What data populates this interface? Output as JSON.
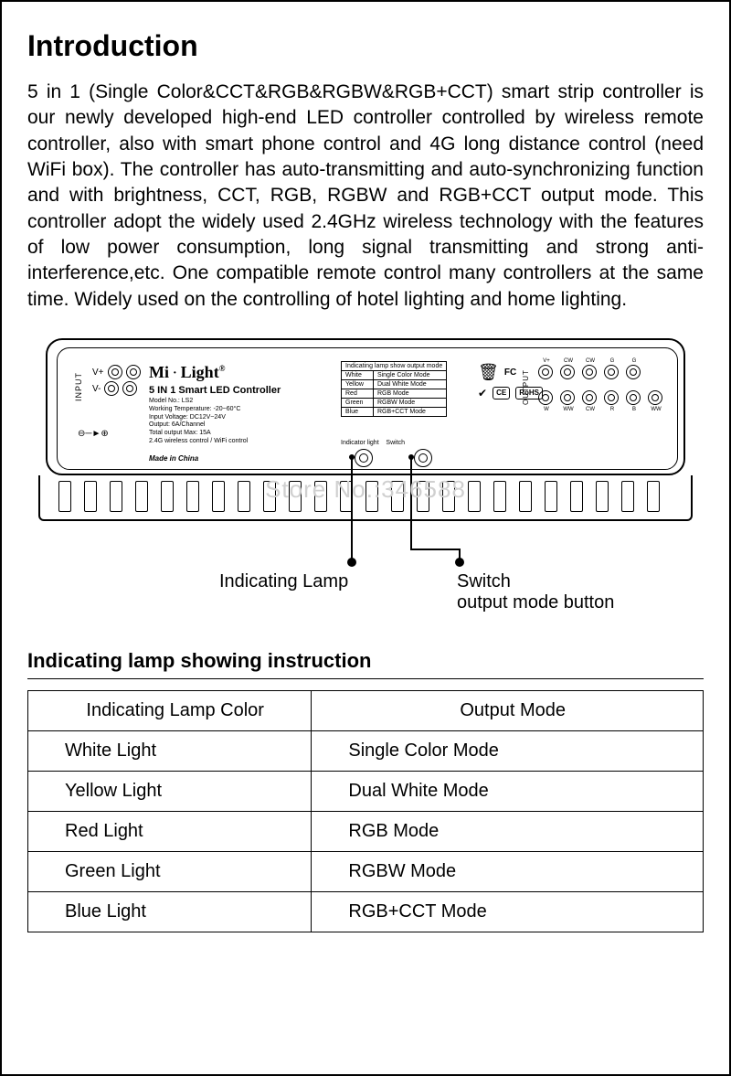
{
  "title": "Introduction",
  "intro": "5 in 1 (Single Color&CCT&RGB&RGBW&RGB+CCT) smart strip controller is our newly developed high-end LED controller controlled by wireless remote controller, also with smart phone control and 4G long distance control (need WiFi box). The controller has auto-transmitting and auto-synchronizing function and with brightness, CCT, RGB, RGBW and RGB+CCT output mode. This controller adopt the widely used 2.4GHz wireless technology with the features of low power consumption, long signal transmitting and strong anti-interference,etc. One compatible remote control many controllers at the same time. Widely used on the controlling of hotel lighting and home lighting.",
  "device": {
    "brand": "Mi · Light",
    "brand_parts": {
      "a": "Mi",
      "b": "Light",
      "reg": "®"
    },
    "product_title": "5 IN 1 Smart LED Controller",
    "input_label": "INPUT",
    "output_label": "OUTPUT",
    "v_plus": "V+",
    "v_minus": "V-",
    "specs": [
      "Model No.: LS2",
      "Working Temperature: -20~60°C",
      "Input Voltage: DC12V~24V",
      "Output: 6A/Channel",
      "Total output Max: 15A",
      "2.4G wireless control / WiFi control"
    ],
    "made_in": "Made in China",
    "mode_header": "Indicating lamp show output mode",
    "mode_rows": [
      {
        "c": "White",
        "m": "Single Color Mode"
      },
      {
        "c": "Yellow",
        "m": "Dual White Mode"
      },
      {
        "c": "Red",
        "m": "RGB Mode"
      },
      {
        "c": "Green",
        "m": "RGBW Mode"
      },
      {
        "c": "Blue",
        "m": "RGB+CCT Mode"
      }
    ],
    "indicator_label": "Indicator light",
    "switch_label": "Switch",
    "cert": {
      "ce": "CE",
      "rohs": "RoHS"
    },
    "out_top": [
      "V+",
      "CW",
      "CW",
      "G",
      "G"
    ],
    "out_bot": [
      "W",
      "WW",
      "CW",
      "R",
      "B",
      "WW"
    ]
  },
  "callouts": {
    "indicating": "Indicating Lamp",
    "switch_line1": "Switch",
    "switch_line2": "output mode button"
  },
  "watermark": "Store No.:346588",
  "table_title": "Indicating lamp showing instruction",
  "table": {
    "headers": [
      "Indicating Lamp Color",
      "Output Mode"
    ],
    "rows": [
      [
        "White Light",
        "Single Color Mode"
      ],
      [
        "Yellow Light",
        "Dual White Mode"
      ],
      [
        "Red Light",
        "RGB Mode"
      ],
      [
        "Green Light",
        "RGBW Mode"
      ],
      [
        "Blue  Light",
        "RGB+CCT Mode"
      ]
    ]
  },
  "colors": {
    "text": "#000000",
    "bg": "#ffffff",
    "watermark": "#d0d0d0",
    "border": "#000000"
  }
}
